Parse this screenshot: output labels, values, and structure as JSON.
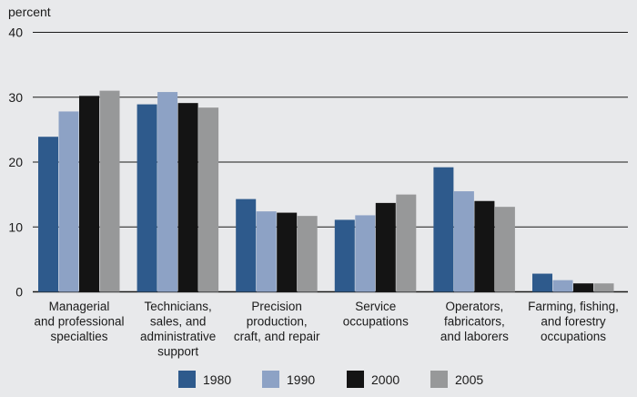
{
  "chart_data": {
    "type": "bar",
    "title": "",
    "ylabel": "percent",
    "xlabel": "",
    "ylim": [
      0,
      40
    ],
    "yticks": [
      0,
      10,
      20,
      30,
      40
    ],
    "grid": true,
    "legend_position": "bottom",
    "categories": [
      [
        "Managerial",
        "and professional",
        "specialties"
      ],
      [
        "Technicians,",
        "sales, and",
        "administrative",
        "support"
      ],
      [
        "Precision",
        "production,",
        "craft, and repair"
      ],
      [
        "Service",
        "occupations"
      ],
      [
        "Operators,",
        "fabricators,",
        "and laborers"
      ],
      [
        "Farming, fishing,",
        "and forestry",
        "occupations"
      ]
    ],
    "series": [
      {
        "name": "1980",
        "color": "#2e5a8c",
        "values": [
          23.9,
          28.9,
          14.3,
          11.1,
          19.2,
          2.8
        ]
      },
      {
        "name": "1990",
        "color": "#8da2c5",
        "values": [
          27.8,
          30.8,
          12.4,
          11.8,
          15.5,
          1.8
        ]
      },
      {
        "name": "2000",
        "color": "#141414",
        "values": [
          30.2,
          29.1,
          12.2,
          13.7,
          14.0,
          1.3
        ]
      },
      {
        "name": "2005",
        "color": "#979899",
        "values": [
          31.0,
          28.4,
          11.7,
          15.0,
          13.1,
          1.3
        ]
      }
    ]
  }
}
